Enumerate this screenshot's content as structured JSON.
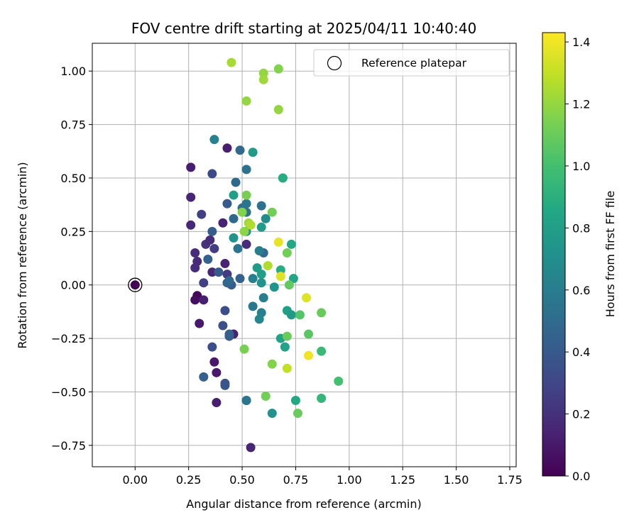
{
  "chart_data": {
    "type": "scatter",
    "title": "FOV centre drift starting at 2025/04/11 10:40:40",
    "xlabel": "Angular distance from reference (arcmin)",
    "ylabel": "Rotation from reference (arcmin)",
    "colorbar_label": "Hours from first FF file",
    "xlim": [
      -0.2,
      1.78
    ],
    "ylim": [
      -0.85,
      1.13
    ],
    "clim": [
      0.0,
      1.43
    ],
    "colormap": "viridis",
    "grid": true,
    "legend_position": "top-right",
    "xticks": [
      0.0,
      0.25,
      0.5,
      0.75,
      1.0,
      1.25,
      1.5,
      1.75
    ],
    "xtick_labels": [
      "0.00",
      "0.25",
      "0.50",
      "0.75",
      "1.00",
      "1.25",
      "1.50",
      "1.75"
    ],
    "yticks": [
      -0.75,
      -0.5,
      -0.25,
      0.0,
      0.25,
      0.5,
      0.75,
      1.0
    ],
    "ytick_labels": [
      "−0.75",
      "−0.50",
      "−0.25",
      "0.00",
      "0.25",
      "0.50",
      "0.75",
      "1.00"
    ],
    "cticks": [
      0.0,
      0.2,
      0.4,
      0.6,
      0.8,
      1.0,
      1.2,
      1.4
    ],
    "ctick_labels": [
      "0.0",
      "0.2",
      "0.4",
      "0.6",
      "0.8",
      "1.0",
      "1.2",
      "1.4"
    ],
    "reference": {
      "name": "Reference platepar",
      "x": 0.0,
      "y": 0.0
    },
    "points": [
      {
        "x": 0.0,
        "y": 0.0,
        "t": 0.0
      },
      {
        "x": 0.29,
        "y": -0.05,
        "t": 0.02
      },
      {
        "x": 0.28,
        "y": -0.07,
        "t": 0.05
      },
      {
        "x": 0.3,
        "y": -0.18,
        "t": 0.1
      },
      {
        "x": 0.32,
        "y": -0.07,
        "t": 0.12
      },
      {
        "x": 0.37,
        "y": -0.36,
        "t": 0.1
      },
      {
        "x": 0.38,
        "y": -0.41,
        "t": 0.1
      },
      {
        "x": 0.38,
        "y": -0.55,
        "t": 0.12
      },
      {
        "x": 0.54,
        "y": -0.76,
        "t": 0.15
      },
      {
        "x": 0.46,
        "y": -0.23,
        "t": 0.14
      },
      {
        "x": 0.43,
        "y": 0.64,
        "t": 0.12
      },
      {
        "x": 0.26,
        "y": 0.55,
        "t": 0.12
      },
      {
        "x": 0.26,
        "y": 0.41,
        "t": 0.15
      },
      {
        "x": 0.26,
        "y": 0.28,
        "t": 0.16
      },
      {
        "x": 0.28,
        "y": 0.15,
        "t": 0.18
      },
      {
        "x": 0.29,
        "y": 0.11,
        "t": 0.17
      },
      {
        "x": 0.28,
        "y": 0.08,
        "t": 0.18
      },
      {
        "x": 0.33,
        "y": 0.19,
        "t": 0.2
      },
      {
        "x": 0.35,
        "y": 0.21,
        "t": 0.18
      },
      {
        "x": 0.36,
        "y": 0.06,
        "t": 0.15
      },
      {
        "x": 0.41,
        "y": 0.29,
        "t": 0.14
      },
      {
        "x": 0.42,
        "y": 0.1,
        "t": 0.14
      },
      {
        "x": 0.52,
        "y": 0.19,
        "t": 0.18
      },
      {
        "x": 0.43,
        "y": 0.05,
        "t": 0.24
      },
      {
        "x": 0.37,
        "y": 0.17,
        "t": 0.26
      },
      {
        "x": 0.31,
        "y": 0.33,
        "t": 0.27
      },
      {
        "x": 0.36,
        "y": 0.52,
        "t": 0.32
      },
      {
        "x": 0.32,
        "y": 0.01,
        "t": 0.27
      },
      {
        "x": 0.41,
        "y": -0.19,
        "t": 0.34
      },
      {
        "x": 0.42,
        "y": -0.12,
        "t": 0.34
      },
      {
        "x": 0.36,
        "y": -0.29,
        "t": 0.34
      },
      {
        "x": 0.42,
        "y": -0.46,
        "t": 0.36
      },
      {
        "x": 0.42,
        "y": -0.47,
        "t": 0.38
      },
      {
        "x": 0.44,
        "y": -0.24,
        "t": 0.42
      },
      {
        "x": 0.44,
        "y": -0.23,
        "t": 0.43
      },
      {
        "x": 0.32,
        "y": -0.43,
        "t": 0.44
      },
      {
        "x": 0.39,
        "y": 0.06,
        "t": 0.4
      },
      {
        "x": 0.36,
        "y": 0.25,
        "t": 0.42
      },
      {
        "x": 0.34,
        "y": 0.12,
        "t": 0.44
      },
      {
        "x": 0.43,
        "y": 0.38,
        "t": 0.4
      },
      {
        "x": 0.45,
        "y": 0.0,
        "t": 0.41
      },
      {
        "x": 0.49,
        "y": 0.03,
        "t": 0.44
      },
      {
        "x": 0.43,
        "y": 0.01,
        "t": 0.47
      },
      {
        "x": 0.44,
        "y": 0.02,
        "t": 0.48
      },
      {
        "x": 0.46,
        "y": 0.31,
        "t": 0.48
      },
      {
        "x": 0.47,
        "y": 0.48,
        "t": 0.48
      },
      {
        "x": 0.49,
        "y": 0.63,
        "t": 0.5
      },
      {
        "x": 0.52,
        "y": 0.54,
        "t": 0.54
      },
      {
        "x": 0.37,
        "y": 0.68,
        "t": 0.62
      },
      {
        "x": 0.48,
        "y": 0.17,
        "t": 0.55
      },
      {
        "x": 0.5,
        "y": 0.36,
        "t": 0.53
      },
      {
        "x": 0.52,
        "y": 0.38,
        "t": 0.56
      },
      {
        "x": 0.52,
        "y": 0.34,
        "t": 0.55
      },
      {
        "x": 0.59,
        "y": 0.37,
        "t": 0.53
      },
      {
        "x": 0.6,
        "y": 0.15,
        "t": 0.48
      },
      {
        "x": 0.58,
        "y": 0.16,
        "t": 0.6
      },
      {
        "x": 0.55,
        "y": 0.03,
        "t": 0.62
      },
      {
        "x": 0.59,
        "y": 0.01,
        "t": 0.72
      },
      {
        "x": 0.57,
        "y": 0.08,
        "t": 0.78
      },
      {
        "x": 0.59,
        "y": 0.05,
        "t": 0.8
      },
      {
        "x": 0.55,
        "y": -0.1,
        "t": 0.58
      },
      {
        "x": 0.6,
        "y": -0.06,
        "t": 0.6
      },
      {
        "x": 0.59,
        "y": -0.13,
        "t": 0.62
      },
      {
        "x": 0.58,
        "y": -0.16,
        "t": 0.66
      },
      {
        "x": 0.52,
        "y": -0.54,
        "t": 0.5
      },
      {
        "x": 0.52,
        "y": -0.54,
        "t": 0.56
      },
      {
        "x": 0.64,
        "y": -0.6,
        "t": 0.72
      },
      {
        "x": 0.61,
        "y": 0.31,
        "t": 0.7
      },
      {
        "x": 0.59,
        "y": 0.27,
        "t": 0.78
      },
      {
        "x": 0.46,
        "y": 0.22,
        "t": 0.74
      },
      {
        "x": 0.46,
        "y": 0.42,
        "t": 0.8
      },
      {
        "x": 0.52,
        "y": 0.25,
        "t": 0.74
      },
      {
        "x": 0.55,
        "y": 0.62,
        "t": 0.78
      },
      {
        "x": 0.69,
        "y": 0.5,
        "t": 0.82
      },
      {
        "x": 0.69,
        "y": 0.5,
        "t": 0.88
      },
      {
        "x": 0.65,
        "y": -0.01,
        "t": 0.74
      },
      {
        "x": 0.71,
        "y": -0.12,
        "t": 0.8
      },
      {
        "x": 0.73,
        "y": -0.14,
        "t": 0.78
      },
      {
        "x": 0.68,
        "y": -0.25,
        "t": 0.82
      },
      {
        "x": 0.7,
        "y": -0.29,
        "t": 0.82
      },
      {
        "x": 0.74,
        "y": 0.03,
        "t": 0.84
      },
      {
        "x": 0.73,
        "y": 0.19,
        "t": 0.86
      },
      {
        "x": 0.68,
        "y": 0.07,
        "t": 0.88
      },
      {
        "x": 0.75,
        "y": -0.54,
        "t": 0.86
      },
      {
        "x": 0.87,
        "y": -0.53,
        "t": 0.94
      },
      {
        "x": 0.87,
        "y": -0.31,
        "t": 0.96
      },
      {
        "x": 0.95,
        "y": -0.45,
        "t": 1.0
      },
      {
        "x": 0.77,
        "y": -0.14,
        "t": 1.04
      },
      {
        "x": 0.81,
        "y": -0.23,
        "t": 1.06
      },
      {
        "x": 0.71,
        "y": -0.24,
        "t": 1.1
      },
      {
        "x": 0.72,
        "y": 0.0,
        "t": 1.08
      },
      {
        "x": 0.71,
        "y": 0.15,
        "t": 1.12
      },
      {
        "x": 0.87,
        "y": -0.13,
        "t": 1.1
      },
      {
        "x": 0.76,
        "y": -0.6,
        "t": 1.1
      },
      {
        "x": 0.61,
        "y": -0.52,
        "t": 1.12
      },
      {
        "x": 0.64,
        "y": -0.37,
        "t": 1.16
      },
      {
        "x": 0.51,
        "y": -0.3,
        "t": 1.14
      },
      {
        "x": 0.64,
        "y": 0.34,
        "t": 1.12
      },
      {
        "x": 0.52,
        "y": 0.42,
        "t": 1.14
      },
      {
        "x": 0.5,
        "y": 0.34,
        "t": 1.16
      },
      {
        "x": 0.51,
        "y": 0.25,
        "t": 1.18
      },
      {
        "x": 0.53,
        "y": 0.29,
        "t": 1.22
      },
      {
        "x": 0.54,
        "y": 0.28,
        "t": 1.26
      },
      {
        "x": 0.62,
        "y": 0.09,
        "t": 1.26
      },
      {
        "x": 0.67,
        "y": 0.82,
        "t": 1.2
      },
      {
        "x": 0.52,
        "y": 0.86,
        "t": 1.2
      },
      {
        "x": 0.6,
        "y": 0.99,
        "t": 1.2
      },
      {
        "x": 0.6,
        "y": 0.96,
        "t": 1.22
      },
      {
        "x": 0.67,
        "y": 1.01,
        "t": 1.16
      },
      {
        "x": 0.45,
        "y": 1.04,
        "t": 1.24
      },
      {
        "x": 0.71,
        "y": -0.39,
        "t": 1.3
      },
      {
        "x": 0.67,
        "y": 0.2,
        "t": 1.38
      },
      {
        "x": 0.68,
        "y": 0.04,
        "t": 1.36
      },
      {
        "x": 0.8,
        "y": -0.06,
        "t": 1.36
      },
      {
        "x": 0.81,
        "y": -0.33,
        "t": 1.4
      }
    ]
  }
}
